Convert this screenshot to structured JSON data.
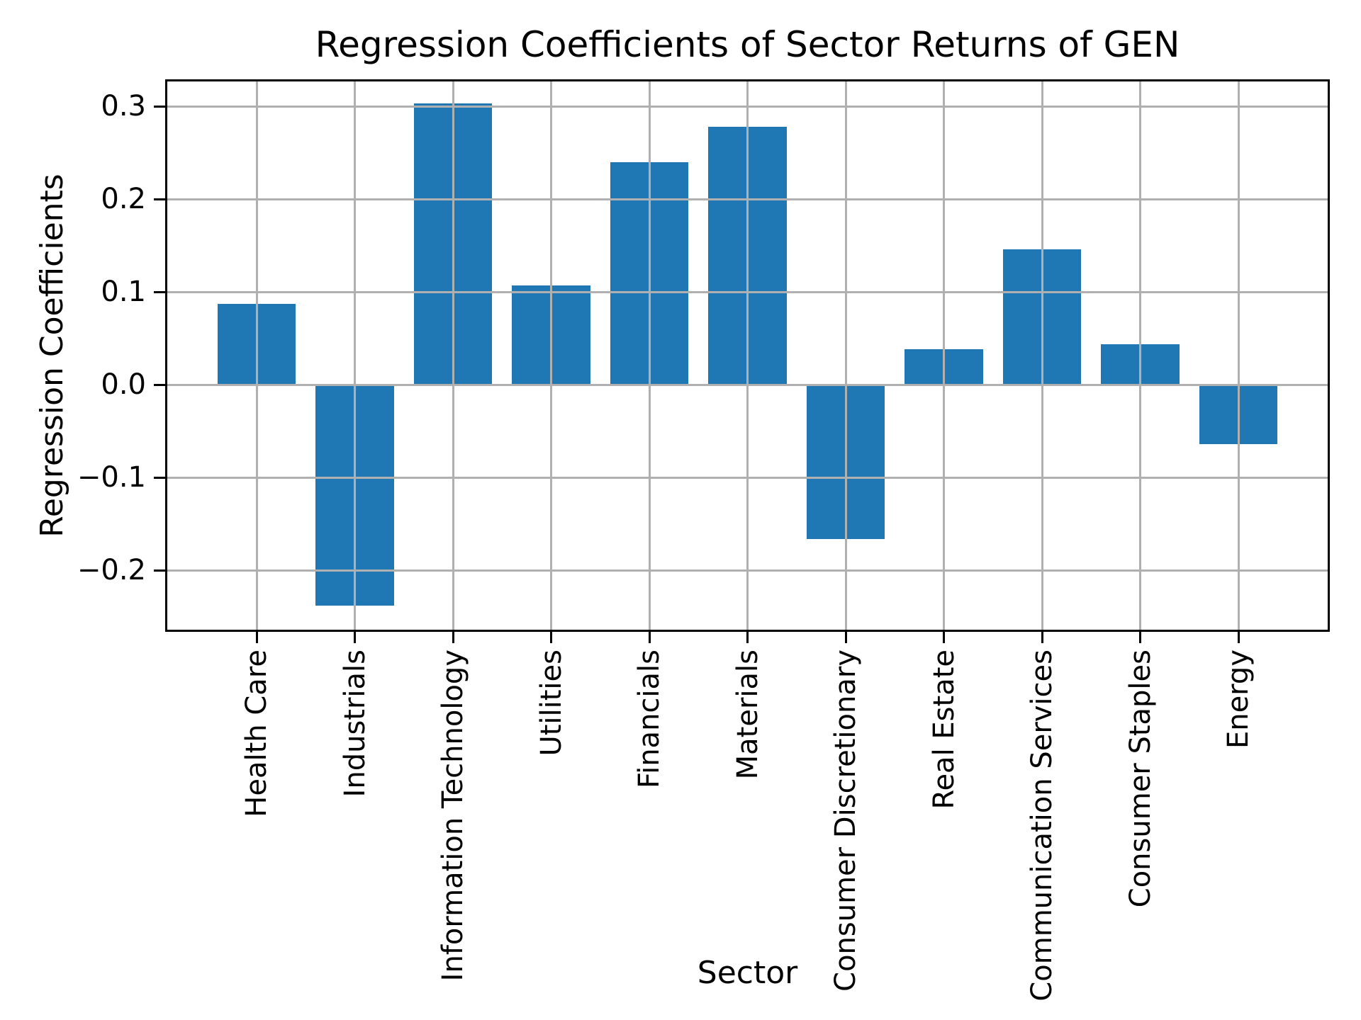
{
  "figure": {
    "title": "Regression Coefficients of Sector Returns of GEN",
    "xlabel": "Sector",
    "ylabel": "Regression Coefficients"
  },
  "chart_data": {
    "type": "bar",
    "title": "Regression Coefficients of Sector Returns of GEN",
    "xlabel": "Sector",
    "ylabel": "Regression Coefficients",
    "categories": [
      "Health Care",
      "Industrials",
      "Information Technology",
      "Utilities",
      "Financials",
      "Materials",
      "Consumer Discretionary",
      "Real Estate",
      "Communication Services",
      "Consumer Staples",
      "Energy"
    ],
    "values": [
      0.087,
      -0.238,
      0.303,
      0.107,
      0.24,
      0.278,
      -0.166,
      0.038,
      0.146,
      0.044,
      -0.064
    ],
    "bar_color": "#1f77b4",
    "grid": true,
    "grid_color": "#b0b0b0",
    "axis_color": "#000000",
    "background_color": "#ffffff",
    "ylim": [
      -0.266,
      0.329
    ],
    "yticks": [
      0.3,
      0.2,
      0.1,
      0.0,
      -0.1,
      -0.2
    ],
    "ytick_labels": [
      "0.3",
      "0.2",
      "0.1",
      "0.0",
      "−0.1",
      "−0.2"
    ],
    "xtick_rotation": 90,
    "bar_width_fraction": 0.8,
    "legend": null
  }
}
